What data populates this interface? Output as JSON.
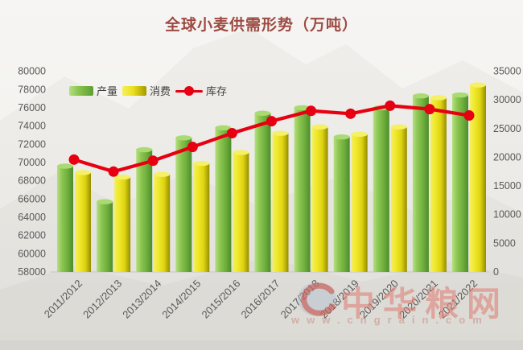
{
  "title": "全球小麦供需形势（万吨）",
  "colors": {
    "title_text": "#9c4a42",
    "axis_text": "#595959",
    "bar_green_light": "#b5e080",
    "bar_green_mid": "#8dc653",
    "bar_green_dark": "#4d8c2b",
    "bar_yellow_light": "#f4ef60",
    "bar_yellow_mid": "#ecdf1e",
    "bar_yellow_dark": "#958d00",
    "line_red": "#e60012",
    "baseline": "#d0cfcc"
  },
  "legend": {
    "production_label": "产量",
    "consumption_label": "消费",
    "stocks_label": "库存"
  },
  "watermark": {
    "logo": "cngrain-globe-logo",
    "text": "中华粮网",
    "url": "www.cngrain.com"
  },
  "chart_data": {
    "type": "bar+line combo",
    "title": "全球小麦供需形势（万吨）",
    "categories": [
      "2011/2012",
      "2012/2013",
      "2013/2014",
      "2014/2015",
      "2015/2016",
      "2016/2017",
      "2017/2018",
      "2018/2019",
      "2019/2020",
      "2020/2021",
      "2021/2022"
    ],
    "series": [
      {
        "name": "产量",
        "type": "bar",
        "axis": "left",
        "values": [
          69600,
          65700,
          71400,
          72700,
          73800,
          75400,
          76000,
          72800,
          76000,
          77300,
          77400
        ]
      },
      {
        "name": "消费",
        "type": "bar",
        "axis": "left",
        "values": [
          68900,
          68400,
          68700,
          69900,
          71100,
          73200,
          73900,
          73100,
          73900,
          77100,
          78500
        ]
      },
      {
        "name": "库存",
        "type": "line",
        "axis": "right",
        "values": [
          19600,
          17500,
          19400,
          21800,
          24200,
          26300,
          28100,
          27600,
          29000,
          28400,
          27300
        ]
      }
    ],
    "left_axis": {
      "min": 58000,
      "max": 80000,
      "step": 2000,
      "ticks": [
        58000,
        60000,
        62000,
        64000,
        66000,
        68000,
        70000,
        72000,
        74000,
        76000,
        78000,
        80000
      ]
    },
    "right_axis": {
      "min": 0,
      "max": 35000,
      "step": 5000,
      "ticks": [
        0,
        5000,
        10000,
        15000,
        20000,
        25000,
        30000,
        35000
      ]
    },
    "grid": false,
    "legend_position": "top-left"
  }
}
